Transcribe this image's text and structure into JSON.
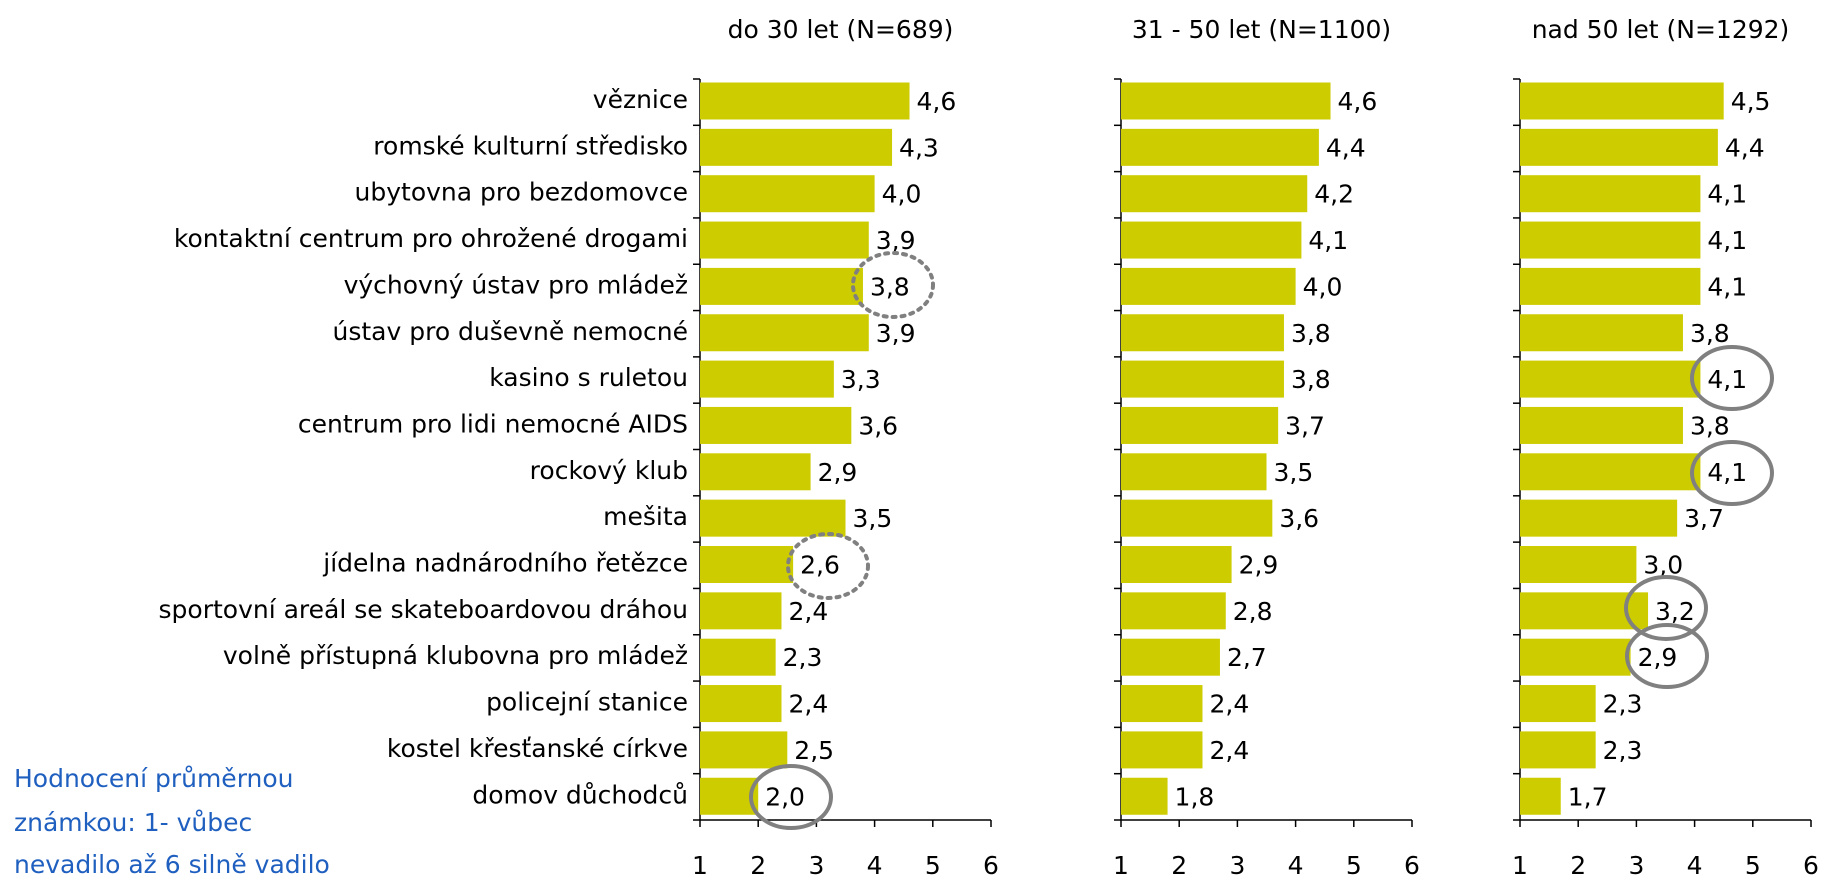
{
  "chart_data": [
    {
      "type": "bar",
      "title": "do 30 let (N=689)",
      "categories": [
        "věznice",
        "romské kulturní středisko",
        "ubytovna pro bezdomovce",
        "kontaktní centrum pro ohrožené drogami",
        "výchovný ústav pro mládež",
        "ústav pro duševně nemocné",
        "kasino s ruletou",
        "centrum pro lidi nemocné AIDS",
        "rockový klub",
        "mešita",
        "jídelna nadnárodního řetězce",
        "sportovní areál se skateboardovou dráhou",
        "volně přístupná klubovna pro mládež",
        "policejní stanice",
        "kostel křesťanské církve",
        "domov důchodců"
      ],
      "values": [
        4.6,
        4.3,
        4.0,
        3.9,
        3.8,
        3.9,
        3.3,
        3.6,
        2.9,
        3.5,
        2.6,
        2.4,
        2.3,
        2.4,
        2.5,
        2.0
      ],
      "value_labels": [
        "4,6",
        "4,3",
        "4,0",
        "3,9",
        "3,8",
        "3,9",
        "3,3",
        "3,6",
        "2,9",
        "3,5",
        "2,6",
        "2,4",
        "2,3",
        "2,4",
        "2,5",
        "2,0"
      ],
      "color": "#cccc00",
      "xlim": [
        1,
        6
      ],
      "xticks": [
        1,
        2,
        3,
        4,
        5,
        6
      ]
    },
    {
      "type": "bar",
      "title": "31 - 50 let (N=1100)",
      "values": [
        4.6,
        4.4,
        4.2,
        4.1,
        4.0,
        3.8,
        3.8,
        3.7,
        3.5,
        3.6,
        2.9,
        2.8,
        2.7,
        2.4,
        2.4,
        1.8
      ],
      "value_labels": [
        "4,6",
        "4,4",
        "4,2",
        "4,1",
        "4,0",
        "3,8",
        "3,8",
        "3,7",
        "3,5",
        "3,6",
        "2,9",
        "2,8",
        "2,7",
        "2,4",
        "2,4",
        "1,8"
      ],
      "color": "#cccc00",
      "xlim": [
        1,
        6
      ],
      "xticks": [
        1,
        2,
        3,
        4,
        5,
        6
      ]
    },
    {
      "type": "bar",
      "title": "nad 50 let (N=1292)",
      "values": [
        4.5,
        4.4,
        4.1,
        4.1,
        4.1,
        3.8,
        4.1,
        3.8,
        4.1,
        3.7,
        3.0,
        3.2,
        2.9,
        2.3,
        2.3,
        1.7
      ],
      "value_labels": [
        "4,5",
        "4,4",
        "4,1",
        "4,1",
        "4,1",
        "3,8",
        "4,1",
        "3,8",
        "4,1",
        "3,7",
        "3,0",
        "3,2",
        "2,9",
        "2,3",
        "2,3",
        "1,7"
      ],
      "color": "#cccc00",
      "xlim": [
        1,
        6
      ],
      "xticks": [
        1,
        2,
        3,
        4,
        5,
        6
      ]
    }
  ],
  "note": [
    "Hodnocení průměrnou",
    "známkou: 1- vůbec",
    "nevadilo až 6 silně vadilo"
  ]
}
